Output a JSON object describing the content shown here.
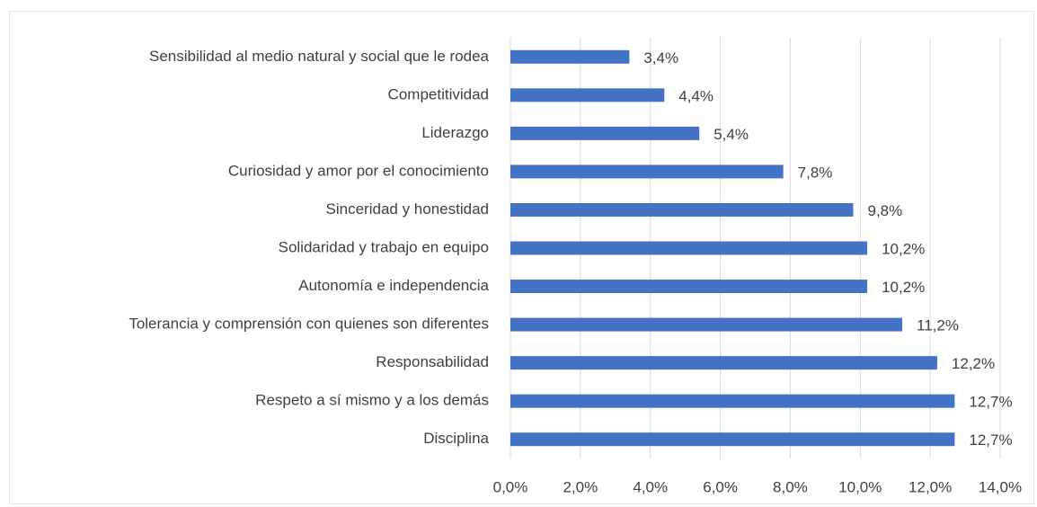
{
  "chart_data": {
    "type": "bar",
    "orientation": "horizontal",
    "categories": [
      "Sensibilidad al medio natural y social que le rodea",
      "Competitividad",
      "Liderazgo",
      "Curiosidad y amor por el conocimiento",
      "Sinceridad y honestidad",
      "Solidaridad y trabajo en equipo ",
      "Autonomía e independencia",
      "Tolerancia y comprensión con quienes son diferentes",
      "Responsabilidad",
      "Respeto a sí mismo y a los demás",
      "Disciplina"
    ],
    "values": [
      3.4,
      4.4,
      5.4,
      7.8,
      9.8,
      10.2,
      10.2,
      11.2,
      12.2,
      12.7,
      12.7
    ],
    "value_labels": [
      "3,4%",
      "4,4%",
      "5,4%",
      "7,8%",
      "9,8%",
      "10,2%",
      "10,2%",
      "11,2%",
      "12,2%",
      "12,7%",
      "12,7%"
    ],
    "color": "#4472c4",
    "xlim": [
      0,
      14
    ],
    "xticks": [
      {
        "value": 0,
        "label": "0,0%"
      },
      {
        "value": 2,
        "label": "2,0%"
      },
      {
        "value": 4,
        "label": "4,0%"
      },
      {
        "value": 6,
        "label": "6,0%"
      },
      {
        "value": 8,
        "label": "8,0%"
      },
      {
        "value": 10,
        "label": "10,0%"
      },
      {
        "value": 12,
        "label": "12,0%"
      },
      {
        "value": 14,
        "label": "14,0%"
      }
    ],
    "grid": true
  }
}
